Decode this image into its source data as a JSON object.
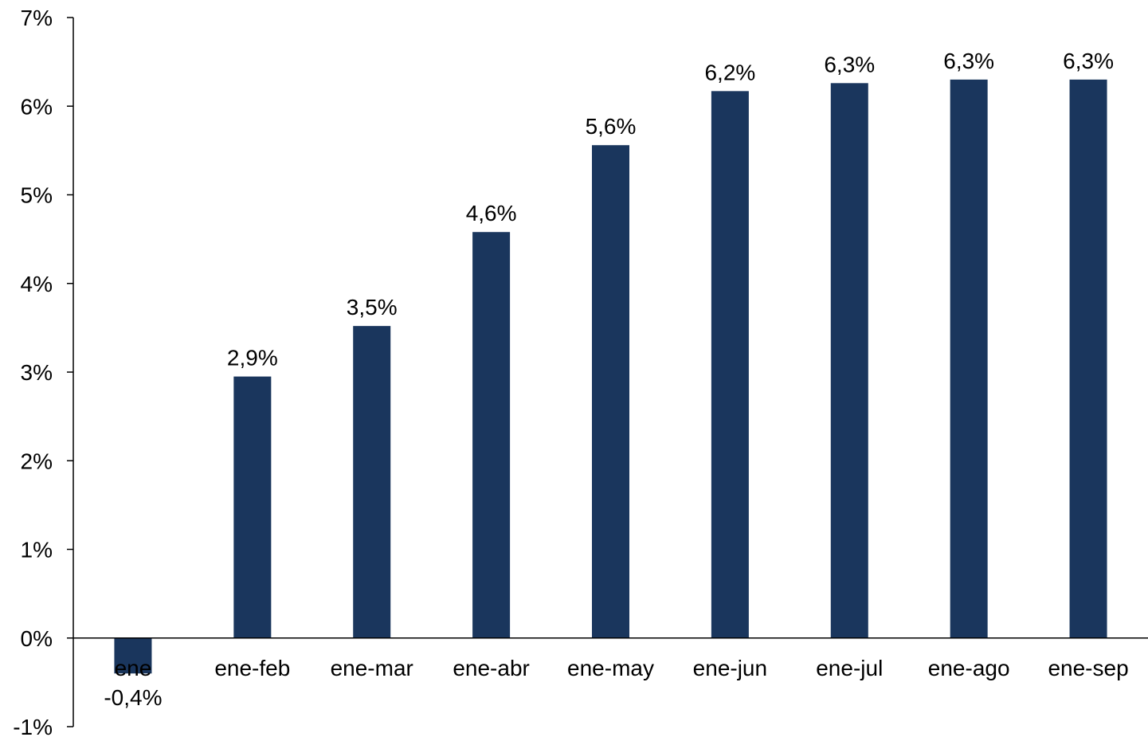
{
  "chart_data": {
    "type": "bar",
    "title": "",
    "xlabel": "",
    "ylabel": "",
    "categories": [
      "ene",
      "ene-feb",
      "ene-mar",
      "ene-abr",
      "ene-may",
      "ene-jun",
      "ene-jul",
      "ene-ago",
      "ene-sep"
    ],
    "values": [
      -0.4,
      2.95,
      3.52,
      4.58,
      5.56,
      6.17,
      6.26,
      6.3,
      6.3
    ],
    "data_labels": [
      "-0,4%",
      "2,9%",
      "3,5%",
      "4,6%",
      "5,6%",
      "6,2%",
      "6,3%",
      "6,3%",
      "6,3%"
    ],
    "ylim": [
      -1,
      7
    ],
    "yticks": [
      7,
      6,
      5,
      4,
      3,
      2,
      1,
      0,
      -1
    ],
    "ytick_labels": [
      "7%",
      "6%",
      "5%",
      "4%",
      "3%",
      "2%",
      "1%",
      "0%",
      "-1%"
    ],
    "grid": false,
    "legend": "none",
    "colors": {
      "bar": "#1a365d",
      "axis": "#000000",
      "text": "#000000"
    }
  }
}
